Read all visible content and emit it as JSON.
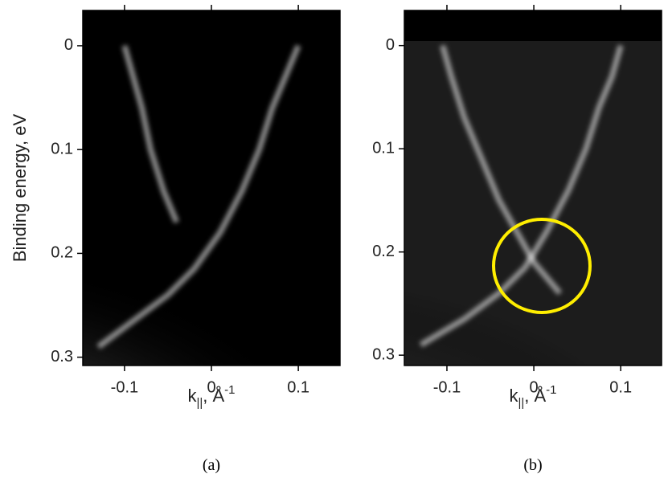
{
  "chart_data": [
    {
      "type": "band-map",
      "ylabel": "Binding energy, eV",
      "xlabel": {
        "main": "k",
        "sub": "||",
        "mid": ", Å",
        "sup": "-1"
      },
      "caption": "(a)",
      "background": "#000000",
      "xlim": [
        -0.148,
        0.148
      ],
      "ylim": [
        0.308,
        -0.034
      ],
      "xticks": [
        -0.1,
        0,
        0.1
      ],
      "yticks": [
        0,
        0.1,
        0.2,
        0.3
      ],
      "series": [
        {
          "color": "#ffffff",
          "x": [
            0.1,
            0.085,
            0.07,
            0.055,
            0.035,
            0.01,
            -0.02,
            -0.05,
            -0.09,
            -0.13
          ],
          "values": [
            0,
            0.03,
            0.06,
            0.1,
            0.14,
            0.18,
            0.215,
            0.24,
            0.265,
            0.29
          ]
        },
        {
          "color": "#ffffff",
          "x": [
            -0.1,
            -0.09,
            -0.08,
            -0.07,
            -0.055,
            -0.04
          ],
          "values": [
            0,
            0.03,
            0.06,
            0.1,
            0.14,
            0.17
          ]
        }
      ]
    },
    {
      "type": "band-map",
      "xlabel": {
        "main": "k",
        "sub": "||",
        "mid": ", Å",
        "sup": "-1"
      },
      "caption": "(b)",
      "background": "#1c1c1c",
      "xlim": [
        -0.149,
        0.147
      ],
      "ylim": [
        0.31,
        -0.034
      ],
      "xticks": [
        -0.1,
        0,
        0.1
      ],
      "yticks": [
        0,
        0.1,
        0.2,
        0.3
      ],
      "series": [
        {
          "color": "#ffffff",
          "x": [
            0.1,
            0.09,
            0.075,
            0.06,
            0.04,
            0.015,
            -0.01,
            -0.04,
            -0.08,
            -0.13
          ],
          "values": [
            0,
            0.03,
            0.06,
            0.1,
            0.14,
            0.18,
            0.215,
            0.24,
            0.265,
            0.29
          ]
        },
        {
          "color": "#ffffff",
          "x": [
            -0.105,
            -0.095,
            -0.08,
            -0.06,
            -0.04,
            -0.02,
            0.0,
            0.03
          ],
          "values": [
            0,
            0.03,
            0.07,
            0.11,
            0.15,
            0.18,
            0.21,
            0.24
          ]
        }
      ]
    }
  ]
}
